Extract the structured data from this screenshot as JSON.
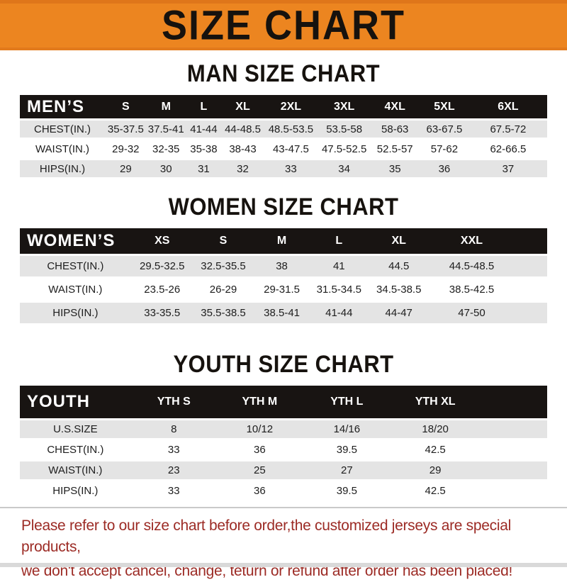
{
  "banner": {
    "title": "SIZE CHART"
  },
  "colors": {
    "banner_orange": "#ec8520",
    "banner_edge_orange": "#df761a",
    "header_bar_black": "#181412",
    "row_gray": "#e4e4e4",
    "note_red": "#9c2b25",
    "title_black": "#16120e"
  },
  "chart_data": [
    {
      "type": "table",
      "title": "MAN SIZE CHART",
      "header_label": "MEN’S",
      "columns": [
        "S",
        "M",
        "L",
        "XL",
        "2XL",
        "3XL",
        "4XL",
        "5XL",
        "6XL"
      ],
      "rows": [
        {
          "label": "CHEST(IN.)",
          "values": [
            "35-37.5",
            "37.5-41",
            "41-44",
            "44-48.5",
            "48.5-53.5",
            "53.5-58",
            "58-63",
            "63-67.5",
            "67.5-72"
          ]
        },
        {
          "label": "WAIST(IN.)",
          "values": [
            "29-32",
            "32-35",
            "35-38",
            "38-43",
            "43-47.5",
            "47.5-52.5",
            "52.5-57",
            "57-62",
            "62-66.5"
          ]
        },
        {
          "label": "HIPS(IN.)",
          "values": [
            "29",
            "30",
            "31",
            "32",
            "33",
            "34",
            "35",
            "36",
            "37"
          ]
        }
      ]
    },
    {
      "type": "table",
      "title": "WOMEN SIZE CHART",
      "header_label": "WOMEN’S",
      "columns": [
        "XS",
        "S",
        "M",
        "L",
        "XL",
        "XXL"
      ],
      "rows": [
        {
          "label": "CHEST(IN.)",
          "values": [
            "29.5-32.5",
            "32.5-35.5",
            "38",
            "41",
            "44.5",
            "44.5-48.5"
          ]
        },
        {
          "label": "WAIST(IN.)",
          "values": [
            "23.5-26",
            "26-29",
            "29-31.5",
            "31.5-34.5",
            "34.5-38.5",
            "38.5-42.5"
          ]
        },
        {
          "label": "HIPS(IN.)",
          "values": [
            "33-35.5",
            "35.5-38.5",
            "38.5-41",
            "41-44",
            "44-47",
            "47-50"
          ]
        }
      ]
    },
    {
      "type": "table",
      "title": "YOUTH SIZE CHART",
      "header_label": "YOUTH",
      "columns": [
        "YTH S",
        "YTH M",
        "YTH L",
        "YTH XL"
      ],
      "rows": [
        {
          "label": "U.S.SIZE",
          "values": [
            "8",
            "10/12",
            "14/16",
            "18/20"
          ]
        },
        {
          "label": "CHEST(IN.)",
          "values": [
            "33",
            "36",
            "39.5",
            "42.5"
          ]
        },
        {
          "label": "WAIST(IN.)",
          "values": [
            "23",
            "25",
            "27",
            "29"
          ]
        },
        {
          "label": "HIPS(IN.)",
          "values": [
            "33",
            "36",
            "39.5",
            "42.5"
          ]
        }
      ]
    }
  ],
  "footer": {
    "line1": "Please refer to our size chart before order,the customized jerseys are special products,",
    "line2": "we don't accept cancel, change, teturn or refund after order has been placed!"
  }
}
